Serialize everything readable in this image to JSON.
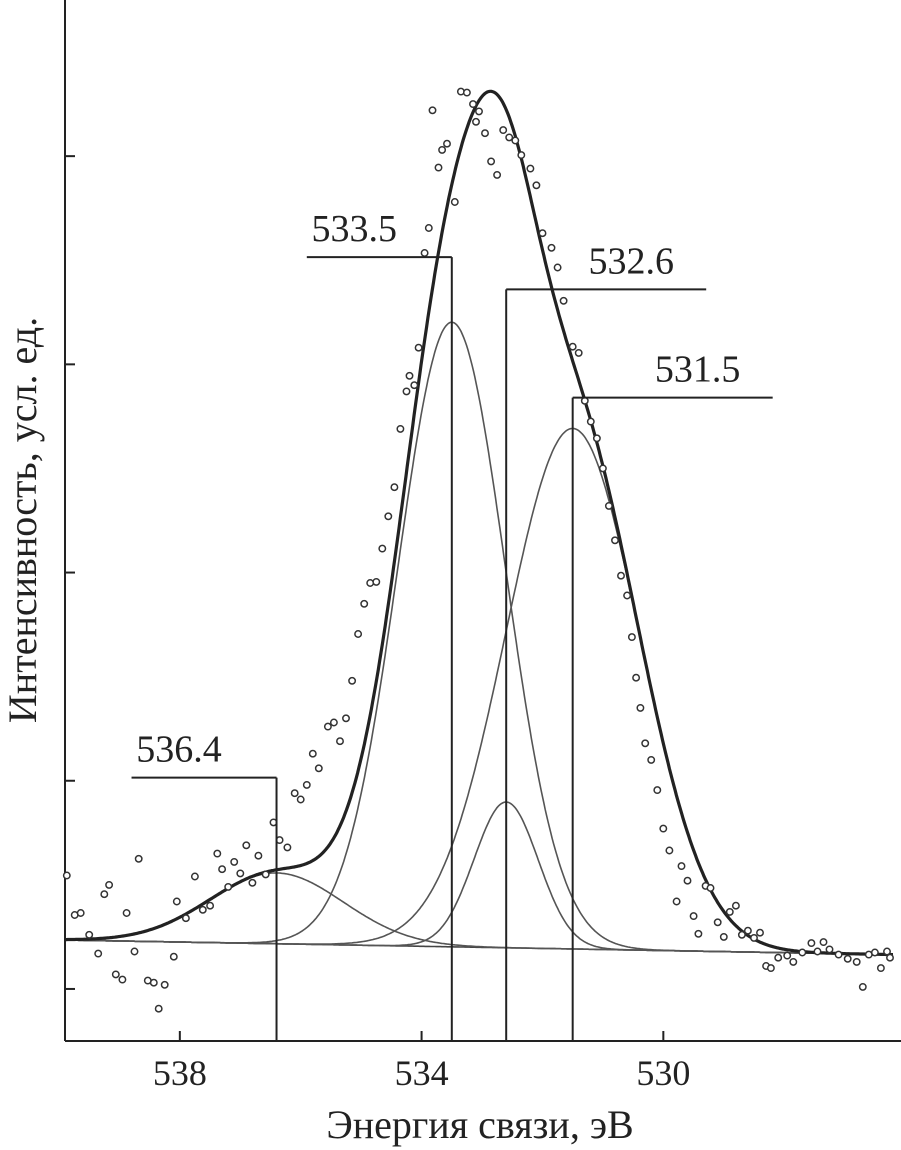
{
  "chart_data": {
    "type": "line",
    "xlabel": "Энергия связи, эВ",
    "ylabel": "Интенсивность, усл. ед.",
    "x_reversed": true,
    "xlim": [
      539.9,
      526.2
    ],
    "ylim": [
      0,
      1.0
    ],
    "x_ticks": [
      538,
      534,
      530
    ],
    "y_ticks": [
      0.05,
      0.25,
      0.45,
      0.65,
      0.85
    ],
    "y_tick_labels_shown": false,
    "baseline": {
      "left": 0.097,
      "right": 0.083
    },
    "components": [
      {
        "center": 536.4,
        "amplitude": 0.068,
        "fwhm": 2.6
      },
      {
        "center": 533.5,
        "amplitude": 0.6,
        "fwhm": 2.1
      },
      {
        "center": 532.6,
        "amplitude": 0.14,
        "fwhm": 1.25
      },
      {
        "center": 531.5,
        "amplitude": 0.5,
        "fwhm": 2.6
      }
    ],
    "peak_labels": [
      {
        "text": "536.4",
        "x": 536.4,
        "y": 0.253
      },
      {
        "text": "533.5",
        "x": 533.5,
        "y": 0.753
      },
      {
        "text": "532.6",
        "x": 532.6,
        "y": 0.722
      },
      {
        "text": "531.5",
        "x": 531.5,
        "y": 0.618
      }
    ],
    "experimental_points": [
      [
        539.87,
        0.159
      ],
      [
        539.74,
        0.121
      ],
      [
        539.64,
        0.123
      ],
      [
        539.5,
        0.102
      ],
      [
        539.35,
        0.084
      ],
      [
        539.25,
        0.141
      ],
      [
        539.17,
        0.15
      ],
      [
        539.06,
        0.064
      ],
      [
        538.95,
        0.059
      ],
      [
        538.88,
        0.123
      ],
      [
        538.75,
        0.086
      ],
      [
        538.68,
        0.175
      ],
      [
        538.53,
        0.058
      ],
      [
        538.43,
        0.056
      ],
      [
        538.35,
        0.031
      ],
      [
        538.25,
        0.054
      ],
      [
        538.1,
        0.081
      ],
      [
        538.05,
        0.134
      ],
      [
        537.9,
        0.118
      ],
      [
        537.75,
        0.158
      ],
      [
        537.62,
        0.126
      ],
      [
        537.5,
        0.13
      ],
      [
        537.38,
        0.18
      ],
      [
        537.3,
        0.165
      ],
      [
        537.2,
        0.148
      ],
      [
        537.1,
        0.172
      ],
      [
        537.0,
        0.161
      ],
      [
        536.9,
        0.188
      ],
      [
        536.8,
        0.152
      ],
      [
        536.7,
        0.178
      ],
      [
        536.58,
        0.16
      ],
      [
        536.45,
        0.21
      ],
      [
        536.35,
        0.193
      ],
      [
        536.22,
        0.186
      ],
      [
        536.1,
        0.238
      ],
      [
        536.0,
        0.232
      ],
      [
        535.9,
        0.246
      ],
      [
        535.8,
        0.276
      ],
      [
        535.7,
        0.262
      ],
      [
        535.55,
        0.302
      ],
      [
        535.45,
        0.306
      ],
      [
        535.35,
        0.288
      ],
      [
        535.25,
        0.31
      ],
      [
        535.15,
        0.346
      ],
      [
        535.05,
        0.391
      ],
      [
        534.95,
        0.42
      ],
      [
        534.85,
        0.44
      ],
      [
        534.75,
        0.441
      ],
      [
        534.65,
        0.473
      ],
      [
        534.55,
        0.504
      ],
      [
        534.45,
        0.532
      ],
      [
        534.35,
        0.588
      ],
      [
        534.25,
        0.624
      ],
      [
        534.2,
        0.639
      ],
      [
        534.12,
        0.63
      ],
      [
        534.05,
        0.666
      ],
      [
        533.95,
        0.757
      ],
      [
        533.88,
        0.781
      ],
      [
        533.82,
        0.894
      ],
      [
        533.72,
        0.839
      ],
      [
        533.66,
        0.856
      ],
      [
        533.58,
        0.862
      ],
      [
        533.45,
        0.806
      ],
      [
        533.35,
        0.912
      ],
      [
        533.25,
        0.911
      ],
      [
        533.15,
        0.9
      ],
      [
        533.1,
        0.883
      ],
      [
        533.05,
        0.893
      ],
      [
        532.95,
        0.872
      ],
      [
        532.85,
        0.845
      ],
      [
        532.75,
        0.832
      ],
      [
        532.65,
        0.875
      ],
      [
        532.55,
        0.868
      ],
      [
        532.45,
        0.865
      ],
      [
        532.35,
        0.851
      ],
      [
        532.2,
        0.838
      ],
      [
        532.1,
        0.822
      ],
      [
        532.0,
        0.776
      ],
      [
        531.85,
        0.762
      ],
      [
        531.75,
        0.743
      ],
      [
        531.65,
        0.711
      ],
      [
        531.5,
        0.667
      ],
      [
        531.4,
        0.661
      ],
      [
        531.3,
        0.615
      ],
      [
        531.2,
        0.595
      ],
      [
        531.1,
        0.579
      ],
      [
        531.0,
        0.55
      ],
      [
        530.9,
        0.514
      ],
      [
        530.8,
        0.481
      ],
      [
        530.7,
        0.447
      ],
      [
        530.6,
        0.428
      ],
      [
        530.52,
        0.388
      ],
      [
        530.45,
        0.349
      ],
      [
        530.38,
        0.32
      ],
      [
        530.3,
        0.286
      ],
      [
        530.2,
        0.27
      ],
      [
        530.1,
        0.241
      ],
      [
        530.0,
        0.204
      ],
      [
        529.9,
        0.183
      ],
      [
        529.78,
        0.134
      ],
      [
        529.7,
        0.168
      ],
      [
        529.6,
        0.154
      ],
      [
        529.5,
        0.12
      ],
      [
        529.42,
        0.103
      ],
      [
        529.3,
        0.149
      ],
      [
        529.22,
        0.147
      ],
      [
        529.1,
        0.114
      ],
      [
        529.0,
        0.1
      ],
      [
        528.9,
        0.124
      ],
      [
        528.8,
        0.13
      ],
      [
        528.7,
        0.102
      ],
      [
        528.6,
        0.106
      ],
      [
        528.5,
        0.099
      ],
      [
        528.4,
        0.104
      ],
      [
        528.3,
        0.072
      ],
      [
        528.22,
        0.07
      ],
      [
        528.1,
        0.08
      ],
      [
        527.95,
        0.082
      ],
      [
        527.85,
        0.076
      ],
      [
        527.7,
        0.085
      ],
      [
        527.55,
        0.094
      ],
      [
        527.45,
        0.086
      ],
      [
        527.35,
        0.095
      ],
      [
        527.25,
        0.088
      ],
      [
        527.1,
        0.083
      ],
      [
        526.95,
        0.079
      ],
      [
        526.8,
        0.076
      ],
      [
        526.7,
        0.052
      ],
      [
        526.6,
        0.083
      ],
      [
        526.5,
        0.085
      ],
      [
        526.4,
        0.07
      ],
      [
        526.3,
        0.086
      ],
      [
        526.25,
        0.08
      ]
    ]
  }
}
